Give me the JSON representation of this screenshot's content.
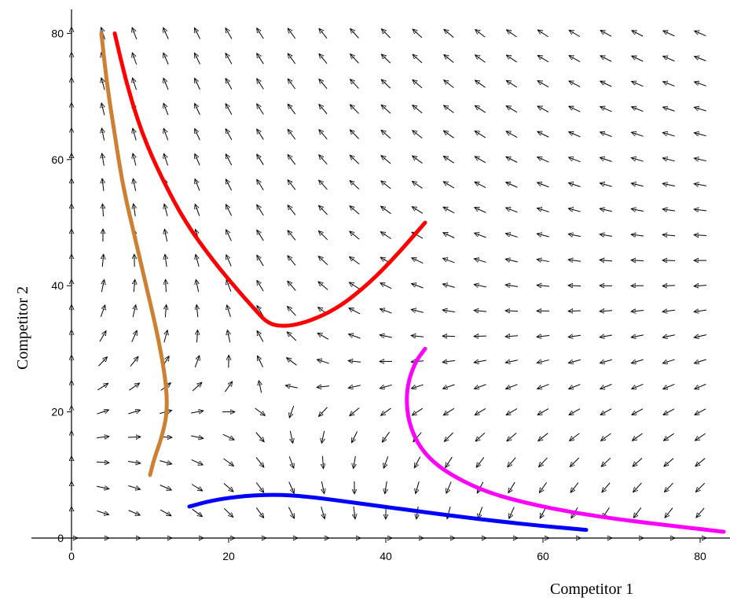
{
  "chart_data": {
    "type": "line",
    "title": "",
    "xlabel": "Competitor 1",
    "ylabel": "Competitor 2",
    "xlim": [
      0,
      83
    ],
    "ylim": [
      0,
      84
    ],
    "x_ticks": [
      0,
      20,
      40,
      60,
      80
    ],
    "y_ticks": [
      0,
      20,
      40,
      60,
      80
    ],
    "grid": false,
    "direction_field": {
      "description": "Lotka-Volterra competition vector field",
      "x_grid": [
        0,
        4,
        8,
        12,
        16,
        20,
        24,
        28,
        32,
        36,
        40,
        44,
        48,
        52,
        56,
        60,
        64,
        68,
        72,
        76,
        80
      ],
      "y_grid": [
        0,
        4,
        8,
        12,
        16,
        20,
        24,
        28,
        32,
        36,
        40,
        44,
        48,
        52,
        56,
        60,
        64,
        68,
        72,
        76,
        80
      ],
      "arrow_color": "#000000"
    },
    "series": [
      {
        "color": "#ff0000",
        "points": [
          [
            5.5,
            80
          ],
          [
            7,
            72
          ],
          [
            9,
            64
          ],
          [
            11.5,
            57
          ],
          [
            14.5,
            50
          ],
          [
            18,
            44
          ],
          [
            21,
            39.5
          ],
          [
            23.5,
            36
          ],
          [
            25,
            34
          ],
          [
            27,
            33.5
          ],
          [
            30,
            34.2
          ],
          [
            34,
            36.5
          ],
          [
            38,
            40.5
          ],
          [
            41.5,
            45
          ],
          [
            45,
            50
          ]
        ]
      },
      {
        "color": "#cd7f32",
        "points": [
          [
            3.8,
            80
          ],
          [
            4.5,
            72
          ],
          [
            5.5,
            64
          ],
          [
            6.5,
            56
          ],
          [
            8,
            48
          ],
          [
            9.5,
            40
          ],
          [
            11,
            32
          ],
          [
            12,
            25
          ],
          [
            12.2,
            20
          ],
          [
            11.5,
            16
          ],
          [
            10.5,
            12.5
          ],
          [
            10,
            10
          ]
        ]
      },
      {
        "color": "#0000ff",
        "points": [
          [
            15,
            5
          ],
          [
            18,
            6
          ],
          [
            22,
            6.7
          ],
          [
            26,
            6.9
          ],
          [
            30,
            6.6
          ],
          [
            36,
            5.6
          ],
          [
            42,
            4.6
          ],
          [
            48,
            3.6
          ],
          [
            54,
            2.7
          ],
          [
            60,
            1.9
          ],
          [
            65.5,
            1.3
          ]
        ]
      },
      {
        "color": "#ff00ff",
        "points": [
          [
            45,
            30
          ],
          [
            43.8,
            28
          ],
          [
            42.9,
            25
          ],
          [
            42.6,
            22
          ],
          [
            42.9,
            18.5
          ],
          [
            44,
            15
          ],
          [
            46,
            12
          ],
          [
            49,
            9.5
          ],
          [
            53,
            7.2
          ],
          [
            58,
            5.5
          ],
          [
            64,
            4
          ],
          [
            70,
            2.9
          ],
          [
            76,
            2
          ],
          [
            83,
            1
          ]
        ]
      }
    ]
  }
}
